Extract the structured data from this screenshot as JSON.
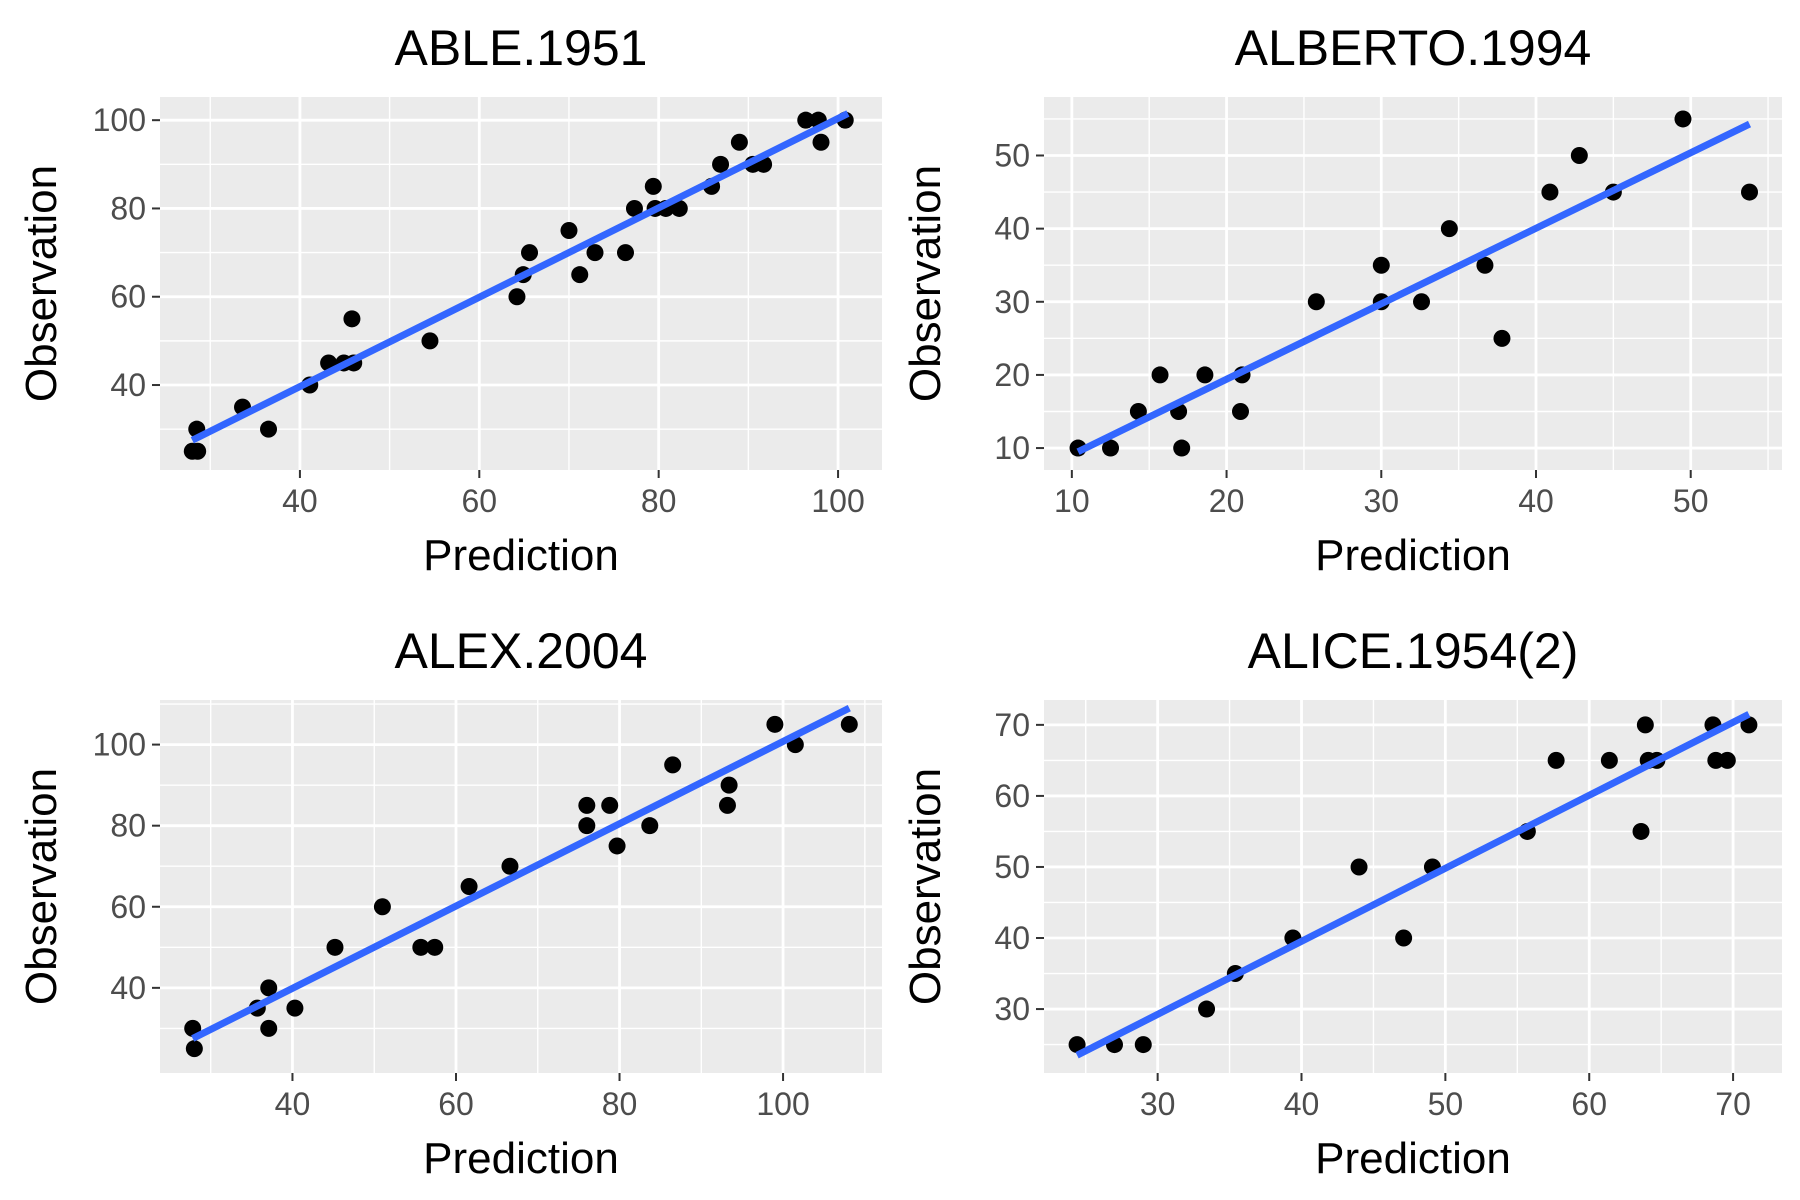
{
  "figure": {
    "panel_background": "#ebebeb",
    "grid_color": "#ffffff",
    "point_color": "#000000",
    "fit_line_color": "#3366ff",
    "tick_label_color": "#4d4d4d"
  },
  "chart_data": [
    {
      "type": "scatter",
      "title": "ABLE.1951",
      "xlabel": "Prediction",
      "ylabel": "Observation",
      "xlim": [
        24.4,
        104.9
      ],
      "ylim": [
        20.75,
        105.25
      ],
      "xticks": [
        40,
        60,
        80,
        100
      ],
      "yticks": [
        40,
        60,
        80,
        100
      ],
      "grid": true,
      "fit_line": [
        [
          28.0,
          27.5
        ],
        [
          101.1,
          101.5
        ]
      ],
      "points": [
        {
          "x": 28.0,
          "y": 25
        },
        {
          "x": 28.6,
          "y": 25
        },
        {
          "x": 28.5,
          "y": 30
        },
        {
          "x": 33.6,
          "y": 35
        },
        {
          "x": 36.5,
          "y": 30
        },
        {
          "x": 41.1,
          "y": 40
        },
        {
          "x": 43.2,
          "y": 45
        },
        {
          "x": 44.9,
          "y": 45
        },
        {
          "x": 45.8,
          "y": 55
        },
        {
          "x": 46.0,
          "y": 45
        },
        {
          "x": 54.5,
          "y": 50
        },
        {
          "x": 64.2,
          "y": 60
        },
        {
          "x": 64.9,
          "y": 65
        },
        {
          "x": 65.6,
          "y": 70
        },
        {
          "x": 70.0,
          "y": 75
        },
        {
          "x": 71.2,
          "y": 65
        },
        {
          "x": 72.9,
          "y": 70
        },
        {
          "x": 76.3,
          "y": 70
        },
        {
          "x": 77.3,
          "y": 80
        },
        {
          "x": 79.4,
          "y": 85
        },
        {
          "x": 79.6,
          "y": 80
        },
        {
          "x": 80.8,
          "y": 80
        },
        {
          "x": 82.3,
          "y": 80
        },
        {
          "x": 85.9,
          "y": 85
        },
        {
          "x": 86.9,
          "y": 90
        },
        {
          "x": 89.0,
          "y": 95
        },
        {
          "x": 90.5,
          "y": 90
        },
        {
          "x": 91.7,
          "y": 90
        },
        {
          "x": 96.4,
          "y": 100
        },
        {
          "x": 97.8,
          "y": 100
        },
        {
          "x": 98.1,
          "y": 95
        },
        {
          "x": 100.8,
          "y": 100
        }
      ]
    },
    {
      "type": "scatter",
      "title": "ALBERTO.1994",
      "xlabel": "Prediction",
      "ylabel": "Observation",
      "xlim": [
        8.2,
        55.9
      ],
      "ylim": [
        7.0,
        58.0
      ],
      "xticks": [
        10,
        20,
        30,
        40,
        50
      ],
      "yticks": [
        10,
        20,
        30,
        40,
        50
      ],
      "grid": true,
      "fit_line": [
        [
          10.4,
          9.5
        ],
        [
          53.8,
          54.3
        ]
      ],
      "points": [
        {
          "x": 10.4,
          "y": 10
        },
        {
          "x": 12.5,
          "y": 10
        },
        {
          "x": 14.3,
          "y": 15
        },
        {
          "x": 15.7,
          "y": 20
        },
        {
          "x": 16.9,
          "y": 15
        },
        {
          "x": 17.1,
          "y": 10
        },
        {
          "x": 18.6,
          "y": 20
        },
        {
          "x": 20.9,
          "y": 15
        },
        {
          "x": 21.0,
          "y": 20
        },
        {
          "x": 25.8,
          "y": 30
        },
        {
          "x": 30.0,
          "y": 35
        },
        {
          "x": 30.0,
          "y": 30
        },
        {
          "x": 32.6,
          "y": 30
        },
        {
          "x": 34.4,
          "y": 40
        },
        {
          "x": 36.7,
          "y": 35
        },
        {
          "x": 37.8,
          "y": 25
        },
        {
          "x": 40.9,
          "y": 45
        },
        {
          "x": 42.8,
          "y": 50
        },
        {
          "x": 45.0,
          "y": 45
        },
        {
          "x": 49.5,
          "y": 55
        },
        {
          "x": 53.8,
          "y": 45
        }
      ]
    },
    {
      "type": "scatter",
      "title": "ALEX.2004",
      "xlabel": "Prediction",
      "ylabel": "Observation",
      "xlim": [
        23.8,
        112.1
      ],
      "ylim": [
        19.0,
        111.0
      ],
      "xticks": [
        40,
        60,
        80,
        100
      ],
      "yticks": [
        40,
        60,
        80,
        100
      ],
      "grid": true,
      "fit_line": [
        [
          27.8,
          27.5
        ],
        [
          108.1,
          109.0
        ]
      ],
      "points": [
        {
          "x": 27.8,
          "y": 30
        },
        {
          "x": 28.0,
          "y": 25
        },
        {
          "x": 35.7,
          "y": 35
        },
        {
          "x": 37.1,
          "y": 40
        },
        {
          "x": 37.1,
          "y": 30
        },
        {
          "x": 40.3,
          "y": 35
        },
        {
          "x": 45.2,
          "y": 50
        },
        {
          "x": 51.0,
          "y": 60
        },
        {
          "x": 55.7,
          "y": 50
        },
        {
          "x": 57.4,
          "y": 50
        },
        {
          "x": 61.6,
          "y": 65
        },
        {
          "x": 66.6,
          "y": 70
        },
        {
          "x": 76.0,
          "y": 85
        },
        {
          "x": 76.0,
          "y": 80
        },
        {
          "x": 78.8,
          "y": 85
        },
        {
          "x": 79.7,
          "y": 75
        },
        {
          "x": 83.7,
          "y": 80
        },
        {
          "x": 86.5,
          "y": 95
        },
        {
          "x": 93.2,
          "y": 85
        },
        {
          "x": 93.4,
          "y": 90
        },
        {
          "x": 99.0,
          "y": 105
        },
        {
          "x": 101.5,
          "y": 100
        },
        {
          "x": 108.1,
          "y": 105
        }
      ]
    },
    {
      "type": "scatter",
      "title": "ALICE.1954(2)",
      "xlabel": "Prediction",
      "ylabel": "Observation",
      "xlim": [
        22.1,
        73.4
      ],
      "ylim": [
        21.0,
        73.5
      ],
      "xticks": [
        30,
        40,
        50,
        60,
        70
      ],
      "yticks": [
        30,
        40,
        50,
        60,
        70
      ],
      "grid": true,
      "fit_line": [
        [
          24.4,
          23.5
        ],
        [
          71.1,
          71.5
        ]
      ],
      "points": [
        {
          "x": 24.4,
          "y": 25
        },
        {
          "x": 27.0,
          "y": 25
        },
        {
          "x": 29.0,
          "y": 25
        },
        {
          "x": 33.4,
          "y": 30
        },
        {
          "x": 35.4,
          "y": 35
        },
        {
          "x": 39.4,
          "y": 40
        },
        {
          "x": 44.0,
          "y": 50
        },
        {
          "x": 47.1,
          "y": 40
        },
        {
          "x": 49.1,
          "y": 50
        },
        {
          "x": 55.7,
          "y": 55
        },
        {
          "x": 57.7,
          "y": 65
        },
        {
          "x": 61.4,
          "y": 65
        },
        {
          "x": 63.6,
          "y": 55
        },
        {
          "x": 63.9,
          "y": 70
        },
        {
          "x": 64.1,
          "y": 65
        },
        {
          "x": 64.7,
          "y": 65
        },
        {
          "x": 68.6,
          "y": 70
        },
        {
          "x": 68.8,
          "y": 65
        },
        {
          "x": 69.6,
          "y": 65
        },
        {
          "x": 71.1,
          "y": 70
        }
      ]
    }
  ]
}
